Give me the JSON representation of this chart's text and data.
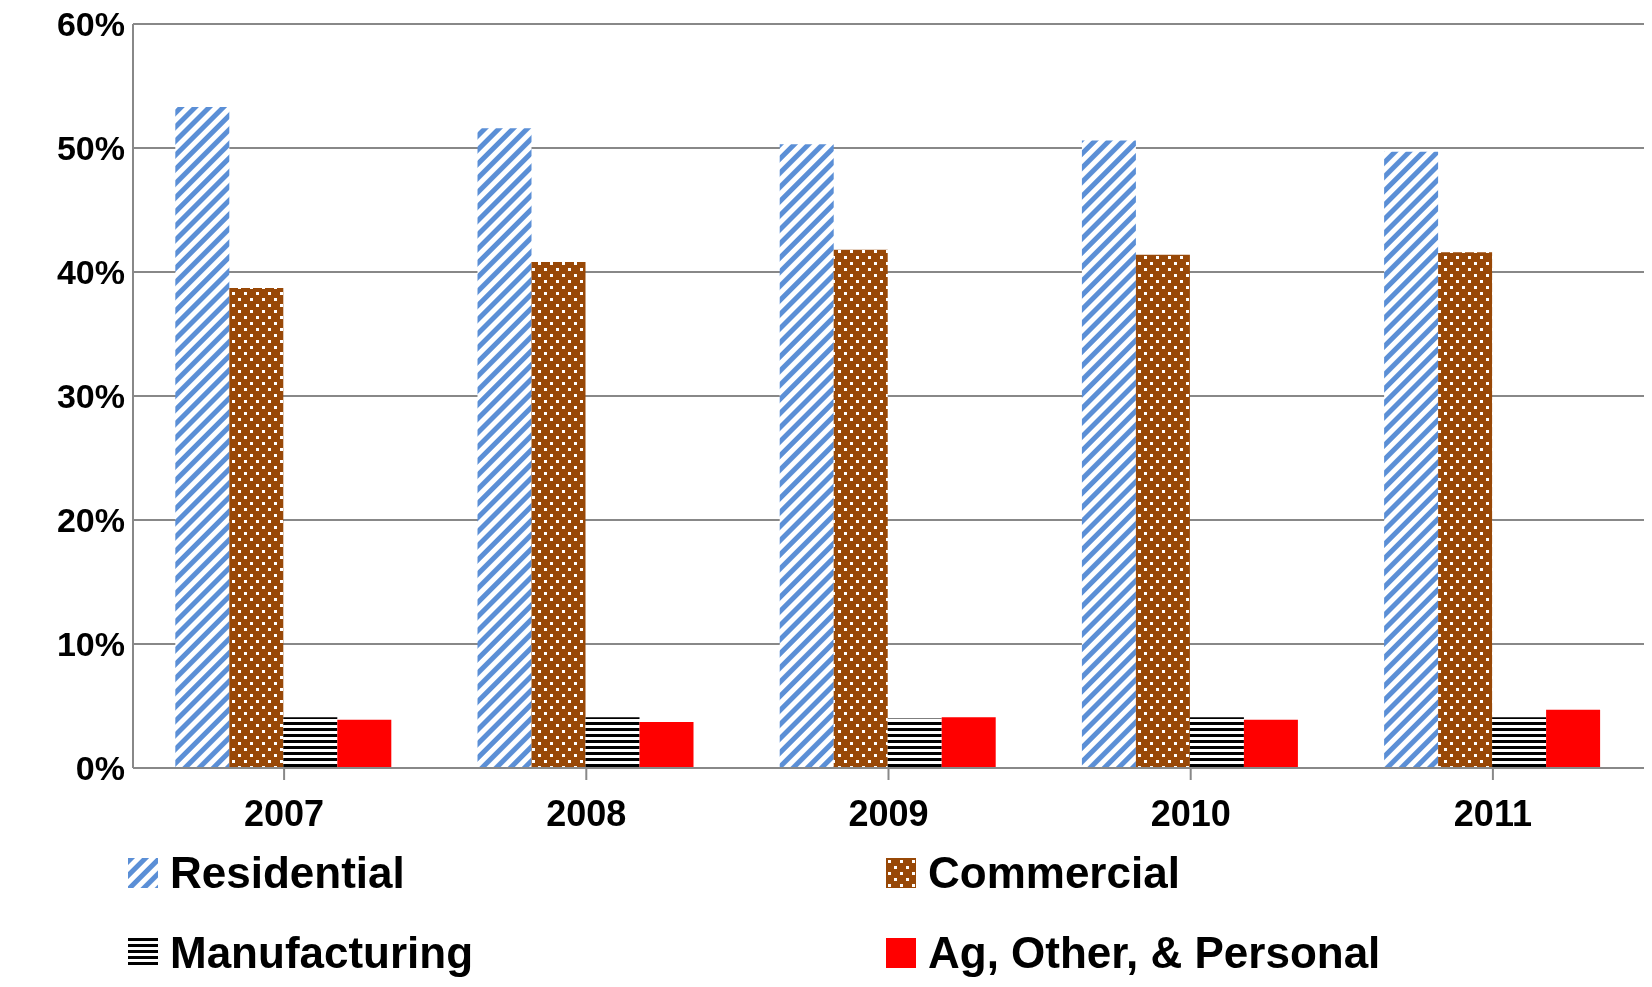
{
  "chart_data": {
    "type": "bar",
    "categories": [
      "2007",
      "2008",
      "2009",
      "2010",
      "2011"
    ],
    "series": [
      {
        "name": "Residential",
        "color": "#5b8fd6",
        "values": [
          53.3,
          51.6,
          50.3,
          50.6,
          49.7
        ]
      },
      {
        "name": "Commercial",
        "color": "#984807",
        "values": [
          38.7,
          40.8,
          41.8,
          41.4,
          41.6
        ]
      },
      {
        "name": "Manufacturing",
        "color": "#000000",
        "values": [
          4.1,
          4.1,
          4.0,
          4.1,
          4.1
        ]
      },
      {
        "name": "Ag, Other, & Personal",
        "color": "#ff0000",
        "values": [
          3.9,
          3.7,
          4.1,
          3.9,
          4.7
        ]
      }
    ],
    "ylim": [
      0,
      60
    ],
    "yticks": [
      {
        "value": 0,
        "label": "0%"
      },
      {
        "value": 10,
        "label": "10%"
      },
      {
        "value": 20,
        "label": "20%"
      },
      {
        "value": 30,
        "label": "30%"
      },
      {
        "value": 40,
        "label": "40%"
      },
      {
        "value": 50,
        "label": "50%"
      },
      {
        "value": 60,
        "label": "60%"
      }
    ],
    "grid": "y",
    "legend": "bottom"
  }
}
